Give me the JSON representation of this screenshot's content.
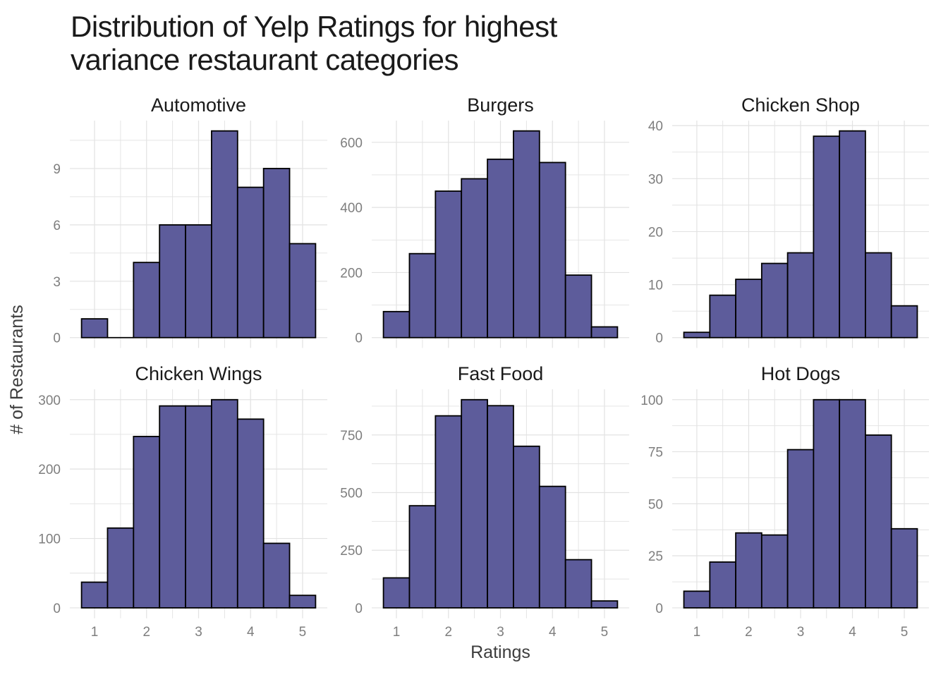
{
  "title": {
    "text": "Distribution of Yelp Ratings for highest\n variance restaurant categories"
  },
  "style": {
    "bar_fill": "#5d5c9b",
    "bar_stroke": "#000000",
    "grid_color": "#e2e2e2",
    "tick_label_color": "#7e7e7e",
    "axis_title_color": "#3d3d3d",
    "facet_title_color": "#1a1a1a",
    "title_color": "#1a1a1a",
    "background": "#ffffff"
  },
  "chart_data": {
    "type": "histogram",
    "title": "Distribution of Yelp Ratings for highest variance restaurant categories",
    "xlabel": "Ratings",
    "ylabel": "# of Restaurants",
    "x": {
      "bin_centers": [
        1,
        1.5,
        2,
        2.5,
        3,
        3.5,
        4,
        4.5,
        5
      ],
      "bin_width": 0.5,
      "ticks": [
        1,
        2,
        3,
        4,
        5
      ]
    },
    "grid": true,
    "legend": false,
    "facets": [
      {
        "title": "Automotive",
        "y_ticks": [
          0,
          3,
          6,
          9
        ],
        "values": [
          1,
          0,
          4,
          6,
          6,
          11,
          8,
          9,
          5
        ]
      },
      {
        "title": "Burgers",
        "y_ticks": [
          0,
          200,
          400,
          600
        ],
        "values": [
          80,
          258,
          450,
          488,
          548,
          635,
          538,
          192,
          33
        ]
      },
      {
        "title": "Chicken Shop",
        "y_ticks": [
          0,
          10,
          20,
          30,
          40
        ],
        "values": [
          1,
          8,
          11,
          14,
          16,
          38,
          39,
          16,
          6
        ]
      },
      {
        "title": "Chicken Wings",
        "y_ticks": [
          0,
          100,
          200,
          300
        ],
        "values": [
          37,
          115,
          247,
          291,
          291,
          300,
          272,
          93,
          18
        ]
      },
      {
        "title": "Fast Food",
        "y_ticks": [
          0,
          250,
          500,
          750
        ],
        "values": [
          130,
          443,
          833,
          903,
          877,
          701,
          527,
          209,
          30
        ]
      },
      {
        "title": "Hot Dogs",
        "y_ticks": [
          0,
          25,
          50,
          75,
          100
        ],
        "values": [
          8,
          22,
          36,
          35,
          76,
          100,
          100,
          83,
          38
        ]
      }
    ]
  }
}
